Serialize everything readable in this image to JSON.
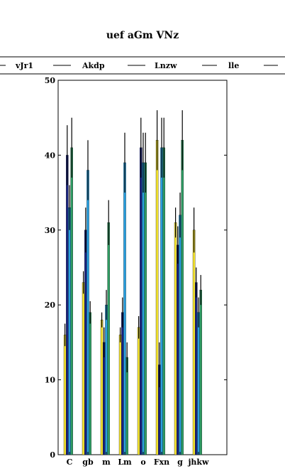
{
  "chart_data": {
    "type": "bar",
    "title": "uef aGm VNz",
    "xlabel": "",
    "ylabel": "",
    "ylim": [
      0,
      50
    ],
    "yticks": [
      0,
      10,
      20,
      30,
      40,
      50
    ],
    "grid": false,
    "legend_position": "top",
    "categories": [
      "C",
      "gb",
      "m",
      "Lm",
      "o",
      "Fxn",
      "g",
      "jhkw"
    ],
    "series": [
      {
        "name": "",
        "color": "#f0e030",
        "values": [
          16,
          23,
          18,
          16,
          17,
          42,
          31,
          30
        ],
        "errors": [
          1.5,
          1.5,
          1.0,
          1.0,
          1.5,
          4.0,
          2.0,
          3.0
        ]
      },
      {
        "name": "vJr1",
        "color": "#1a237e",
        "values": [
          40,
          30,
          15,
          19,
          41,
          12,
          28,
          23
        ],
        "errors": [
          4.0,
          3.0,
          2.0,
          2.0,
          4.0,
          3.0,
          2.5,
          2.0
        ]
      },
      {
        "name": "Akdp",
        "color": "#29a0e0",
        "values": [
          33,
          38,
          20,
          39,
          39,
          41,
          32,
          19
        ],
        "errors": [
          3.0,
          4.0,
          2.0,
          4.0,
          4.0,
          4.0,
          3.0,
          2.0
        ]
      },
      {
        "name": "Lnzw",
        "color": "#2e9c63",
        "values": [
          41,
          19,
          31,
          13,
          39,
          41,
          42,
          22
        ],
        "errors": [
          4.0,
          1.5,
          3.0,
          2.0,
          4.0,
          4.0,
          4.0,
          2.0
        ]
      },
      {
        "name": "lle",
        "color": "#e05a20",
        "values": [
          0,
          0,
          0,
          0,
          0,
          0,
          0,
          0
        ],
        "errors": [
          0,
          0,
          0,
          0,
          0,
          0,
          0,
          0
        ]
      }
    ]
  }
}
